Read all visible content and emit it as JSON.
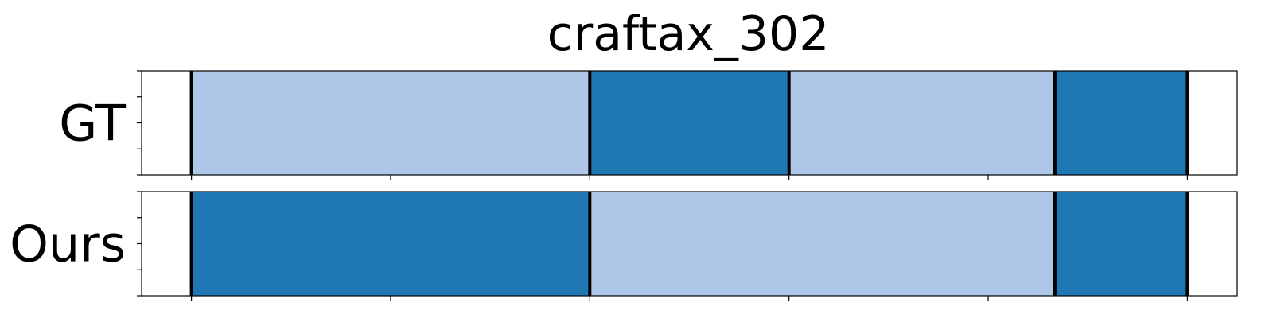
{
  "chart_data": {
    "type": "segmentation-timeline",
    "title": "craftax_302",
    "xlim": [
      0,
      1100
    ],
    "colors": {
      "light": "#aec7e8",
      "dark": "#1f77b4"
    },
    "rows": [
      {
        "label": "GT",
        "segments": [
          {
            "start": 50,
            "end": 450,
            "color": "light"
          },
          {
            "start": 450,
            "end": 650,
            "color": "dark"
          },
          {
            "start": 650,
            "end": 917,
            "color": "light"
          },
          {
            "start": 917,
            "end": 1050,
            "color": "dark"
          }
        ],
        "boundaries": [
          50,
          450,
          650,
          917,
          1050
        ]
      },
      {
        "label": "Ours",
        "segments": [
          {
            "start": 50,
            "end": 450,
            "color": "dark"
          },
          {
            "start": 450,
            "end": 917,
            "color": "light"
          },
          {
            "start": 917,
            "end": 1050,
            "color": "dark"
          }
        ],
        "boundaries": [
          50,
          450,
          917,
          1050
        ]
      }
    ],
    "x_ticks": [
      50,
      250,
      450,
      650,
      850,
      1050
    ],
    "y_ticks_per_row": 5,
    "x_tick_labels_shown": false,
    "y_tick_labels_shown": false,
    "grid": false,
    "legend": "none"
  }
}
